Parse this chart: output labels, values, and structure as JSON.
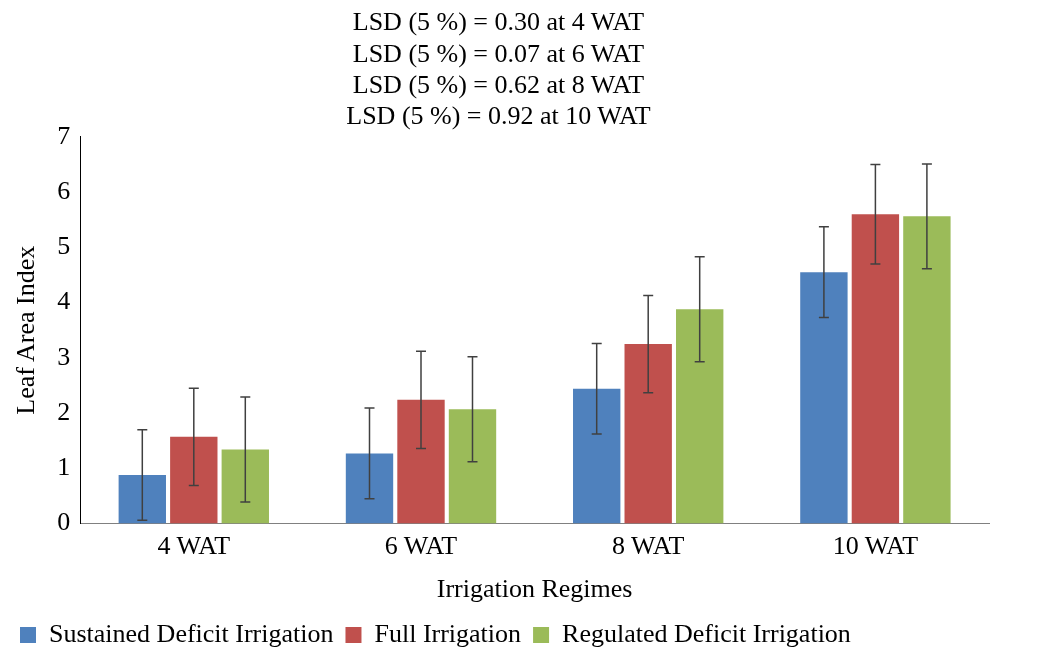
{
  "chart_data": {
    "type": "bar",
    "title": "LSD (5 %) = 0.30 at 4 WAT\nLSD (5 %) = 0.07 at 6 WAT\nLSD (5 %) = 0.62 at 8 WAT\nLSD (5 %) = 0.92 at 10 WAT",
    "xlabel": "Irrigation Regimes",
    "ylabel": "Leaf Area Index",
    "categories": [
      "4 WAT",
      "6 WAT",
      "8 WAT",
      "10 WAT"
    ],
    "series": [
      {
        "name": "Sustained Deficit Irrigation",
        "color": "#4f81bd",
        "values": [
          0.88,
          1.27,
          2.44,
          4.55
        ],
        "errors": [
          0.82,
          0.82,
          0.82,
          0.82
        ]
      },
      {
        "name": "Full Irrigation",
        "color": "#c0504d",
        "values": [
          1.57,
          2.24,
          3.25,
          5.6
        ],
        "errors": [
          0.88,
          0.88,
          0.88,
          0.9
        ]
      },
      {
        "name": "Regulated Deficit Irrigation",
        "color": "#9bbb59",
        "values": [
          1.34,
          2.07,
          3.88,
          5.56
        ],
        "errors": [
          0.95,
          0.95,
          0.95,
          0.95
        ]
      }
    ],
    "ylim": [
      0,
      7
    ],
    "yticks": [
      0,
      1,
      2,
      3,
      4,
      5,
      6,
      7
    ],
    "grid": false,
    "legend": "bottom"
  }
}
